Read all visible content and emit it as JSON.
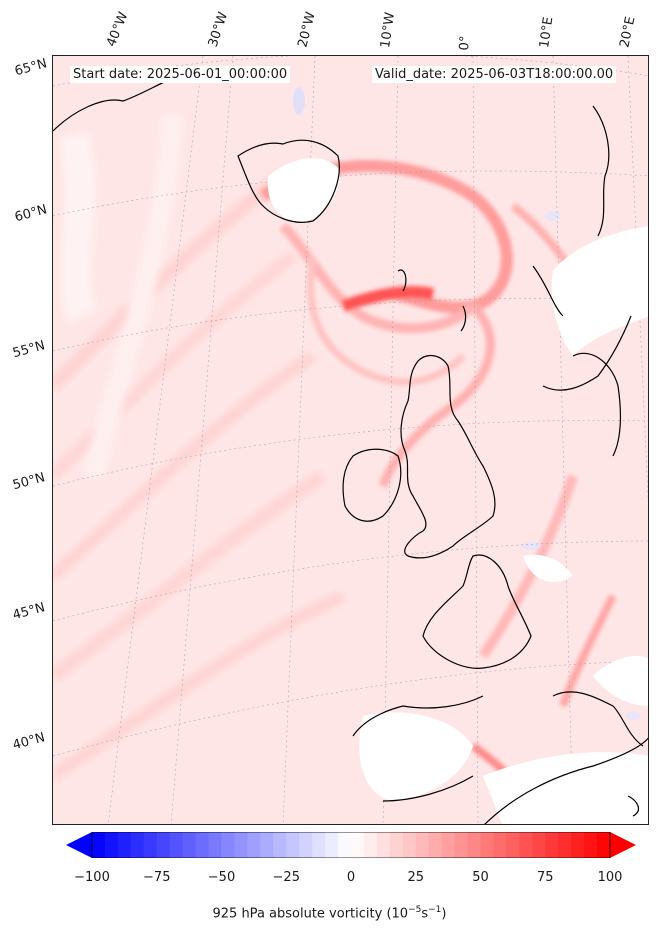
{
  "header": {
    "start": "Start date: 2025-06-01_00:00:00",
    "valid": "Valid_date: 2025-06-03T18:00:00.00"
  },
  "longitude_labels": [
    "40°W",
    "30°W",
    "20°W",
    "10°W",
    "0°",
    "10°E",
    "20°E"
  ],
  "latitude_labels": [
    "65°N",
    "60°N",
    "55°N",
    "50°N",
    "45°N",
    "40°N"
  ],
  "colorbar": {
    "ticks": [
      "−100",
      "−75",
      "−50",
      "−25",
      "0",
      "25",
      "50",
      "75",
      "100"
    ],
    "min": -100,
    "max": 100,
    "low_color": "#0000ff",
    "mid_color": "#ffffff",
    "high_color": "#ff0000",
    "label_main": "925 hPa absolute vorticity (10",
    "label_exp1": "−5",
    "label_mid": "s",
    "label_exp2": "−1",
    "label_end": ")"
  },
  "field": {
    "background_color": "#ffe3e3",
    "strong_color": "#ff3a3a"
  }
}
